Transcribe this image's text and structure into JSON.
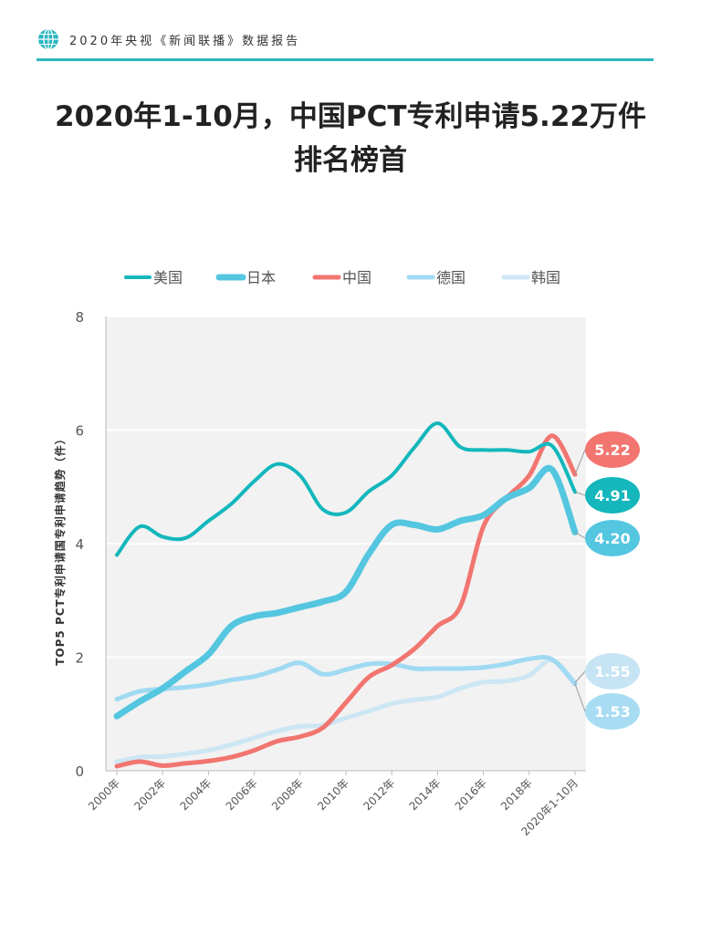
{
  "header": {
    "report_title": "2020年央视《新闻联播》数据报告",
    "globe_icon": "globe-icon"
  },
  "headline": {
    "line1": "2020年1-10月，中国PCT专利申请5.22万件",
    "line2": "排名榜首"
  },
  "chart_data": {
    "type": "line",
    "ylabel": "TOP5 PCT专利申请国专利申请趋势（件）",
    "xlabel": "",
    "ylim": [
      0,
      8
    ],
    "yticks": [
      0,
      2,
      4,
      6,
      8
    ],
    "x_tick_labels": [
      "2000年",
      "2002年",
      "2004年",
      "2006年",
      "2008年",
      "2010年",
      "2012年",
      "2014年",
      "2016年",
      "2018年",
      "2020年1-10月"
    ],
    "x": [
      "2000年",
      "2001年",
      "2002年",
      "2003年",
      "2004年",
      "2005年",
      "2006年",
      "2007年",
      "2008年",
      "2009年",
      "2010年",
      "2011年",
      "2012年",
      "2013年",
      "2014年",
      "2015年",
      "2016年",
      "2017年",
      "2018年",
      "2019年",
      "2020年1-10月"
    ],
    "grid": true,
    "legend_position": "top",
    "series": [
      {
        "name": "美国",
        "color": "#13b7bc",
        "width": 4,
        "values": [
          3.8,
          4.3,
          4.12,
          4.1,
          4.4,
          4.7,
          5.1,
          5.4,
          5.2,
          4.6,
          4.55,
          4.92,
          5.2,
          5.7,
          6.12,
          5.7,
          5.65,
          5.65,
          5.62,
          5.72,
          4.91
        ],
        "end_label": "4.91"
      },
      {
        "name": "日本",
        "color": "#54c6e0",
        "width": 7,
        "values": [
          0.96,
          1.22,
          1.45,
          1.75,
          2.05,
          2.55,
          2.72,
          2.78,
          2.88,
          2.98,
          3.15,
          3.82,
          4.33,
          4.33,
          4.25,
          4.4,
          4.5,
          4.8,
          4.98,
          5.3,
          4.2
        ],
        "end_label": "4.20"
      },
      {
        "name": "中国",
        "color": "#f27570",
        "width": 5,
        "values": [
          0.08,
          0.16,
          0.09,
          0.13,
          0.17,
          0.24,
          0.36,
          0.52,
          0.6,
          0.76,
          1.2,
          1.65,
          1.86,
          2.15,
          2.55,
          2.9,
          4.3,
          4.8,
          5.2,
          5.9,
          5.22
        ],
        "end_label": "5.22"
      },
      {
        "name": "德国",
        "color": "#a0daf2",
        "width": 5,
        "values": [
          1.26,
          1.4,
          1.44,
          1.47,
          1.52,
          1.6,
          1.66,
          1.78,
          1.9,
          1.7,
          1.78,
          1.88,
          1.88,
          1.8,
          1.8,
          1.8,
          1.82,
          1.88,
          1.97,
          1.96,
          1.53
        ],
        "end_label": "1.53"
      },
      {
        "name": "韩国",
        "color": "#cce6f4",
        "width": 5,
        "values": [
          0.16,
          0.24,
          0.25,
          0.3,
          0.36,
          0.46,
          0.58,
          0.7,
          0.78,
          0.8,
          0.93,
          1.05,
          1.18,
          1.25,
          1.3,
          1.45,
          1.56,
          1.58,
          1.68,
          1.95,
          1.55
        ],
        "end_label": "1.55"
      }
    ],
    "callout_order": [
      "中国",
      "美国",
      "日本",
      "韩国",
      "德国"
    ],
    "callout_colors": {
      "中国": {
        "bg": "#f27570",
        "fg": "#ffffff"
      },
      "美国": {
        "bg": "#13b7bc",
        "fg": "#ffffff"
      },
      "日本": {
        "bg": "#54c6e0",
        "fg": "#ffffff"
      },
      "韩国": {
        "bg": "#c6e4f3",
        "fg": "#ffffff"
      },
      "德国": {
        "bg": "#a7dcf2",
        "fg": "#ffffff"
      }
    },
    "plot_background": "#f2f2f2"
  }
}
